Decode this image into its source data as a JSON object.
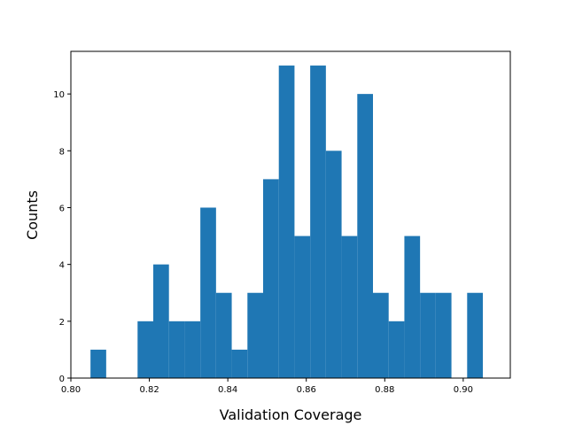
{
  "chart_data": {
    "type": "bar",
    "subtype": "histogram",
    "title": "",
    "xlabel": "Validation Coverage",
    "ylabel": "Counts",
    "xlim": [
      0.8,
      0.912
    ],
    "ylim": [
      0,
      11.5
    ],
    "xticks": [
      "0.80",
      "0.82",
      "0.84",
      "0.86",
      "0.88",
      "0.90"
    ],
    "yticks": [
      "0",
      "2",
      "4",
      "6",
      "8",
      "10"
    ],
    "grid": false,
    "legend": "none",
    "bar_color": "#1f77b4",
    "bins_left_edge": [
      0.805,
      0.809,
      0.813,
      0.817,
      0.821,
      0.825,
      0.829,
      0.833,
      0.837,
      0.841,
      0.845,
      0.849,
      0.853,
      0.857,
      0.861,
      0.865,
      0.869,
      0.873,
      0.877,
      0.881,
      0.885,
      0.889,
      0.893,
      0.897,
      0.901
    ],
    "bin_width": 0.004,
    "counts": [
      1,
      0,
      0,
      2,
      4,
      2,
      2,
      6,
      3,
      1,
      3,
      7,
      11,
      5,
      11,
      8,
      5,
      10,
      3,
      2,
      5,
      3,
      3,
      0,
      3
    ]
  }
}
